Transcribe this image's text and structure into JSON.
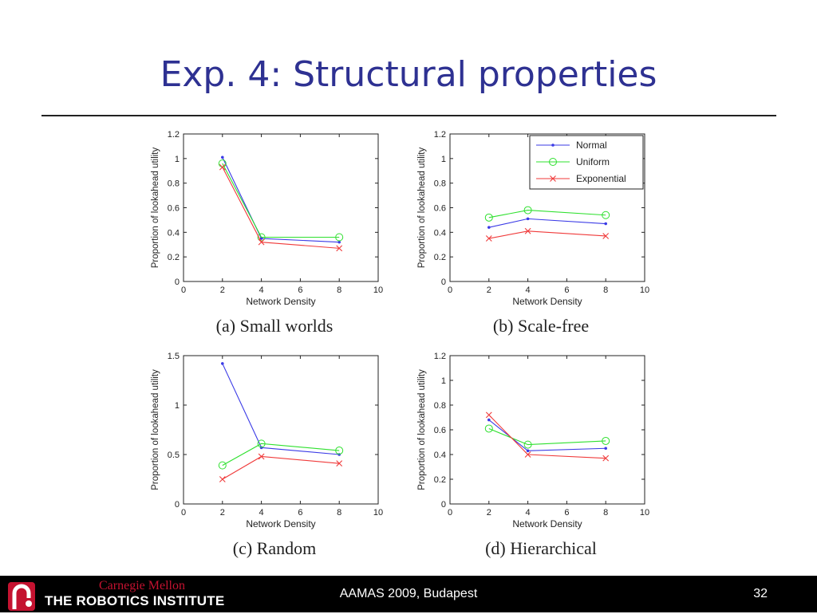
{
  "slide": {
    "title": "Exp. 4: Structural properties",
    "footer_institution_top": "Carnegie Mellon",
    "footer_institution_bottom": "THE ROBOTICS INSTITUTE",
    "footer_conference": "AAMAS 2009, Budapest",
    "page_number": "32"
  },
  "colors": {
    "title": "#2e3192",
    "normal": "#3a3ae6",
    "uniform": "#2ee02e",
    "exponential": "#f03a3a",
    "footer_bg": "#000000",
    "cmu_red": "#c41230"
  },
  "legend": {
    "placement": "top-right of panel (b)",
    "entries": [
      {
        "name": "Normal",
        "marker": "dot",
        "color": "#3a3ae6"
      },
      {
        "name": "Uniform",
        "marker": "circle",
        "color": "#2ee02e"
      },
      {
        "name": "Exponential",
        "marker": "x",
        "color": "#f03a3a"
      }
    ]
  },
  "chart_data": [
    {
      "type": "line",
      "caption": "(a) Small worlds",
      "xlabel": "Network Density",
      "ylabel": "Proportion of lookahead utility",
      "xlim": [
        0,
        10
      ],
      "ylim": [
        0,
        1.2
      ],
      "xticks": [
        "0",
        "2",
        "4",
        "6",
        "8",
        "10"
      ],
      "yticks": [
        "0",
        "0.2",
        "0.4",
        "0.6",
        "0.8",
        "1",
        "1.2"
      ],
      "x": [
        2,
        4,
        8
      ],
      "series": [
        {
          "name": "Normal",
          "values": [
            1.01,
            0.35,
            0.32
          ]
        },
        {
          "name": "Uniform",
          "values": [
            0.96,
            0.36,
            0.36
          ]
        },
        {
          "name": "Exponential",
          "values": [
            0.93,
            0.32,
            0.27
          ]
        }
      ]
    },
    {
      "type": "line",
      "caption": "(b) Scale-free",
      "xlabel": "Network Density",
      "ylabel": "Proportion of lookahead utility",
      "xlim": [
        0,
        10
      ],
      "ylim": [
        0,
        1.2
      ],
      "xticks": [
        "0",
        "2",
        "4",
        "6",
        "8",
        "10"
      ],
      "yticks": [
        "0",
        "0.2",
        "0.4",
        "0.6",
        "0.8",
        "1",
        "1.2"
      ],
      "x": [
        2,
        4,
        8
      ],
      "series": [
        {
          "name": "Normal",
          "values": [
            0.44,
            0.51,
            0.47
          ]
        },
        {
          "name": "Uniform",
          "values": [
            0.52,
            0.58,
            0.54
          ]
        },
        {
          "name": "Exponential",
          "values": [
            0.35,
            0.41,
            0.37
          ]
        }
      ]
    },
    {
      "type": "line",
      "caption": "(c) Random",
      "xlabel": "Network Density",
      "ylabel": "Proportion of lookahead utility",
      "xlim": [
        0,
        10
      ],
      "ylim": [
        0,
        1.5
      ],
      "xticks": [
        "0",
        "2",
        "4",
        "6",
        "8",
        "10"
      ],
      "yticks": [
        "0",
        "0.5",
        "1",
        "1.5"
      ],
      "x": [
        2,
        4,
        8
      ],
      "series": [
        {
          "name": "Normal",
          "values": [
            1.42,
            0.57,
            0.5
          ]
        },
        {
          "name": "Uniform",
          "values": [
            0.39,
            0.61,
            0.54
          ]
        },
        {
          "name": "Exponential",
          "values": [
            0.25,
            0.48,
            0.41
          ]
        }
      ]
    },
    {
      "type": "line",
      "caption": "(d) Hierarchical",
      "xlabel": "Network Density",
      "ylabel": "Proportion of lookahead utility",
      "xlim": [
        0,
        10
      ],
      "ylim": [
        0,
        1.2
      ],
      "xticks": [
        "0",
        "2",
        "4",
        "6",
        "8",
        "10"
      ],
      "yticks": [
        "0",
        "0.2",
        "0.4",
        "0.6",
        "0.8",
        "1",
        "1.2"
      ],
      "x": [
        2,
        4,
        8
      ],
      "series": [
        {
          "name": "Normal",
          "values": [
            0.68,
            0.43,
            0.45
          ]
        },
        {
          "name": "Uniform",
          "values": [
            0.61,
            0.48,
            0.51
          ]
        },
        {
          "name": "Exponential",
          "values": [
            0.72,
            0.4,
            0.37
          ]
        }
      ]
    }
  ]
}
